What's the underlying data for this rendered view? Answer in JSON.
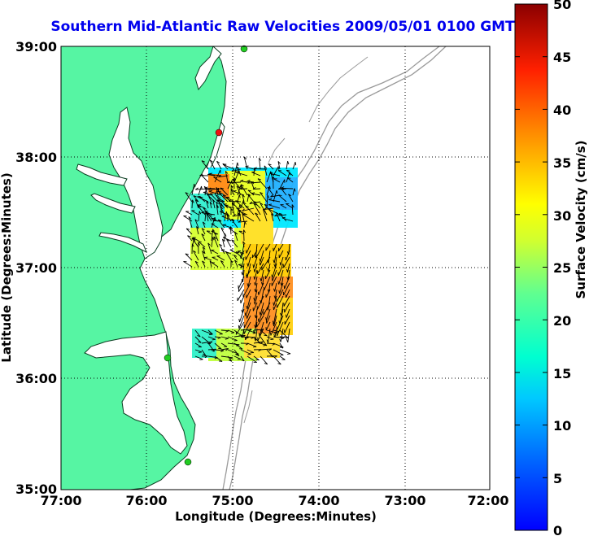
{
  "title": "Southern Mid-Atlantic Raw Velocities 2009/05/01 0100 GMT",
  "x_axis": {
    "label": "Longitude (Degrees:Minutes)",
    "ticks": [
      "77:00",
      "76:00",
      "75:00",
      "74:00",
      "73:00",
      "72:00"
    ]
  },
  "y_axis": {
    "label": "Latitude (Degrees:Minutes)",
    "ticks": [
      "39:00",
      "38:00",
      "37:00",
      "36:00",
      "35:00"
    ]
  },
  "colorbar": {
    "label": "Surface Velocity (cm/s)",
    "ticks": [
      "50",
      "45",
      "40",
      "35",
      "30",
      "25",
      "20",
      "15",
      "10",
      "5",
      "0"
    ],
    "range": [
      0,
      50
    ],
    "colormap": "jet"
  },
  "colors": {
    "land": "#56f5a3",
    "water": "#ffffff",
    "coastline": "#0a3d20",
    "bathymetry": "#9a9a9a",
    "title": "#0000ee",
    "station_active": "#22cc22",
    "station_inactive": "#ee1111"
  },
  "stations": [
    {
      "lon": -74.9,
      "lat": 38.95,
      "status": "active"
    },
    {
      "lon": -75.1,
      "lat": 38.24,
      "status": "inactive"
    },
    {
      "lon": -75.75,
      "lat": 36.19,
      "status": "active"
    },
    {
      "lon": -75.52,
      "lat": 35.24,
      "status": "active"
    }
  ],
  "grid": true
}
